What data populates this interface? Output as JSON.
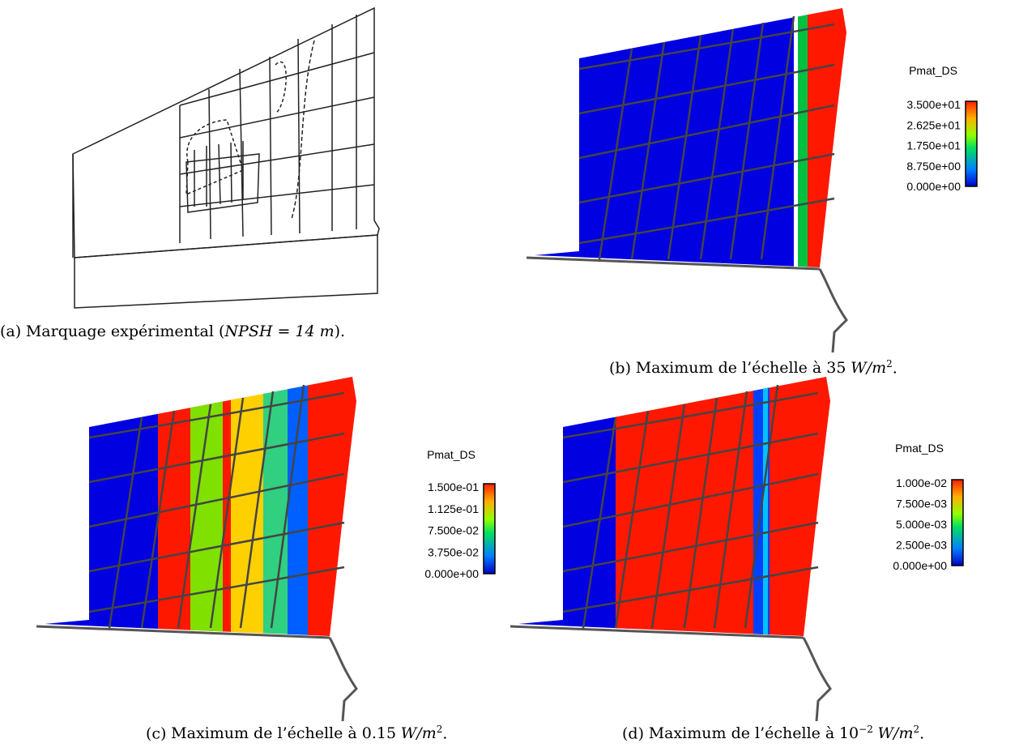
{
  "panels": [
    {
      "caption": {
        "label": "(a)",
        "text": "Marquage expérimental (",
        "math": "NPSH = 14 m",
        "end": ")."
      }
    },
    {
      "caption": {
        "label": "(b)",
        "text": "Maximum de l’échelle à 35",
        "unit": "W/m",
        "unit_exp": "2",
        "end": "."
      },
      "legend": {
        "title": "Pmat_DS",
        "ticks": [
          "3.500e+01",
          "2.625e+01",
          "1.750e+01",
          "8.750e+00",
          "0.000e+00"
        ]
      }
    },
    {
      "caption": {
        "label": "(c)",
        "text": "Maximum de l’échelle à 0.15",
        "unit": "W/m",
        "unit_exp": "2",
        "end": "."
      },
      "legend": {
        "title": "Pmat_DS",
        "ticks": [
          "1.500e-01",
          "1.125e-01",
          "7.500e-02",
          "3.750e-02",
          "0.000e+00"
        ]
      }
    },
    {
      "caption": {
        "label": "(d)",
        "text": "Maximum de l’échelle à",
        "base": "10",
        "exp": "−2",
        "unit": "W/m",
        "unit_exp": "2",
        "end": "."
      },
      "legend": {
        "title": "Pmat_DS",
        "ticks": [
          "1.000e-02",
          "7.500e-03",
          "5.000e-03",
          "2.500e-03",
          "0.000e+00"
        ]
      }
    }
  ]
}
